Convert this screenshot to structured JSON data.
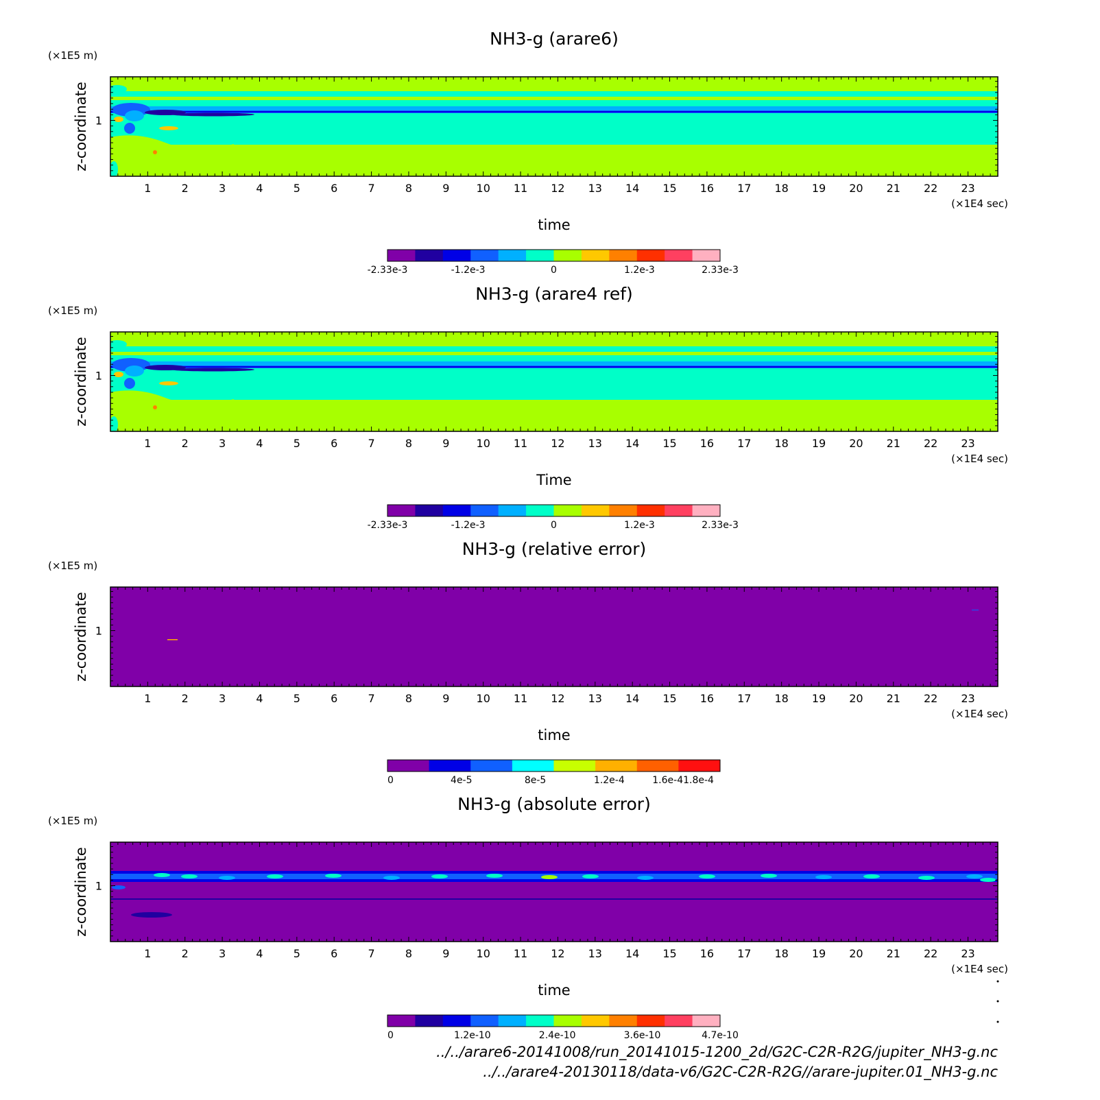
{
  "page": {
    "footer_lines": [
      "../../arare6-20141008/run_20141015-1200_2d/G2C-C2R-R2G/jupiter_NH3-g.nc",
      "../../arare4-20130118/data-v6/G2C-C2R-R2G//arare-jupiter.01_NH3-g.nc"
    ]
  },
  "chart_data": [
    {
      "type": "heatmap",
      "title": "NH3-g (arare6)",
      "xlabel": "time",
      "ylabel": "z-coordinate",
      "x_unit": "(×1E4 sec)",
      "y_unit": "(×1E5 m)",
      "x_ticks": [
        1,
        2,
        3,
        4,
        5,
        6,
        7,
        8,
        9,
        10,
        11,
        12,
        13,
        14,
        15,
        16,
        17,
        18,
        19,
        20,
        21,
        22,
        23
      ],
      "y_ticks": [
        1
      ],
      "xlim": [
        0,
        23.8
      ],
      "ylim": [
        0,
        1.78
      ],
      "pattern": "field",
      "colorbar": {
        "colors": [
          "#8000a8",
          "#2000a0",
          "#0000e6",
          "#1060ff",
          "#00b0ff",
          "#00ffc8",
          "#a8ff00",
          "#ffc800",
          "#ff8000",
          "#ff3000",
          "#ff4060",
          "#ffb0c0"
        ],
        "tick_labels": [
          "-2.33e-3",
          "-1.2e-3",
          "0",
          "1.2e-3",
          "2.33e-3"
        ],
        "tick_values": [
          -0.00233,
          -0.0012,
          0,
          0.0012,
          0.00233
        ],
        "range": [
          -0.00233,
          0.00233
        ]
      }
    },
    {
      "type": "heatmap",
      "title": "NH3-g (arare4 ref)",
      "xlabel": "Time",
      "ylabel": "z-coordinate",
      "x_unit": "(×1E4 sec)",
      "y_unit": "(×1E5 m)",
      "x_ticks": [
        1,
        2,
        3,
        4,
        5,
        6,
        7,
        8,
        9,
        10,
        11,
        12,
        13,
        14,
        15,
        16,
        17,
        18,
        19,
        20,
        21,
        22,
        23
      ],
      "y_ticks": [
        1
      ],
      "xlim": [
        0,
        23.8
      ],
      "ylim": [
        0,
        1.78
      ],
      "pattern": "field",
      "colorbar": {
        "colors": [
          "#8000a8",
          "#2000a0",
          "#0000e6",
          "#1060ff",
          "#00b0ff",
          "#00ffc8",
          "#a8ff00",
          "#ffc800",
          "#ff8000",
          "#ff3000",
          "#ff4060",
          "#ffb0c0"
        ],
        "tick_labels": [
          "-2.33e-3",
          "-1.2e-3",
          "0",
          "1.2e-3",
          "2.33e-3"
        ],
        "tick_values": [
          -0.00233,
          -0.0012,
          0,
          0.0012,
          0.00233
        ],
        "range": [
          -0.00233,
          0.00233
        ]
      }
    },
    {
      "type": "heatmap",
      "title": "NH3-g (relative error)",
      "xlabel": "time",
      "ylabel": "z-coordinate",
      "x_unit": "(×1E4 sec)",
      "y_unit": "(×1E5 m)",
      "x_ticks": [
        1,
        2,
        3,
        4,
        5,
        6,
        7,
        8,
        9,
        10,
        11,
        12,
        13,
        14,
        15,
        16,
        17,
        18,
        19,
        20,
        21,
        22,
        23
      ],
      "y_ticks": [
        1
      ],
      "xlim": [
        0,
        23.8
      ],
      "ylim": [
        0,
        1.78
      ],
      "pattern": "relerr",
      "colorbar": {
        "colors": [
          "#8000a8",
          "#0000e6",
          "#1060ff",
          "#00ffff",
          "#c8ff00",
          "#ffb000",
          "#ff6000",
          "#ff1010"
        ],
        "tick_labels": [
          "0",
          "4e-5",
          "8e-5",
          "1.2e-4",
          "1.6e-41.8e-4"
        ],
        "tick_values": [
          0,
          4e-05,
          8e-05,
          0.00012,
          0.00016
        ],
        "range": [
          0,
          0.00018
        ]
      }
    },
    {
      "type": "heatmap",
      "title": "NH3-g (absolute error)",
      "xlabel": "time",
      "ylabel": "z-coordinate",
      "x_unit": "(×1E4 sec)",
      "y_unit": "(×1E5 m)",
      "x_ticks": [
        1,
        2,
        3,
        4,
        5,
        6,
        7,
        8,
        9,
        10,
        11,
        12,
        13,
        14,
        15,
        16,
        17,
        18,
        19,
        20,
        21,
        22,
        23
      ],
      "y_ticks": [
        1
      ],
      "xlim": [
        0,
        23.8
      ],
      "ylim": [
        0,
        1.78
      ],
      "pattern": "abserr",
      "colorbar": {
        "colors": [
          "#8000a8",
          "#2000a0",
          "#0000e6",
          "#1060ff",
          "#00b0ff",
          "#00ffc8",
          "#a8ff00",
          "#ffc800",
          "#ff8000",
          "#ff3000",
          "#ff4060",
          "#ffb0c0"
        ],
        "tick_labels": [
          "0",
          "1.2e-10",
          "2.4e-10",
          "3.6e-10",
          "4.7e-10"
        ],
        "tick_values": [
          0,
          1.2e-10,
          2.4e-10,
          3.6e-10,
          4.7e-10
        ],
        "range": [
          0,
          4.7e-10
        ]
      }
    }
  ]
}
